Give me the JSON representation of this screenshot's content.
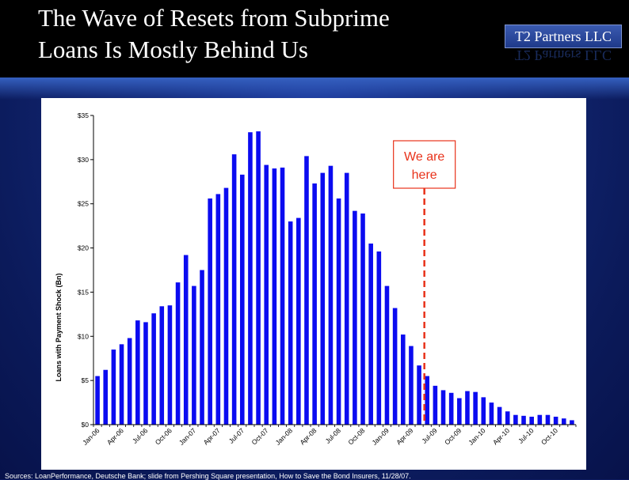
{
  "header": {
    "title_line1": "The Wave of Resets from Subprime",
    "title_line2": "Loans Is Mostly Behind Us",
    "logo_text": "T2 Partners LLC"
  },
  "colors": {
    "bar": "#0b0bf0",
    "callout": "#e8321a",
    "background": "#0d1a5e"
  },
  "chart_data": {
    "type": "bar",
    "title": "",
    "xlabel": "",
    "ylabel": "Loans with Payment Shock (Bn)",
    "ylim": [
      0,
      35
    ],
    "yticks": [
      0,
      5,
      10,
      15,
      20,
      25,
      30,
      35
    ],
    "ytick_labels": [
      "$0",
      "$5",
      "$10",
      "$15",
      "$20",
      "$25",
      "$30",
      "$35"
    ],
    "x_tick_labels": [
      "Jan-06",
      "Apr-06",
      "Jul-06",
      "Oct-06",
      "Jan-07",
      "Apr-07",
      "Jul-07",
      "Oct-07",
      "Jan-08",
      "Apr-08",
      "Jul-08",
      "Oct-08",
      "Jan-09",
      "Apr-09",
      "Jul-09",
      "Oct-09",
      "Jan-10",
      "Apr-10",
      "Jul-10",
      "Oct-10"
    ],
    "categories": [
      "Jan-06",
      "Feb-06",
      "Mar-06",
      "Apr-06",
      "May-06",
      "Jun-06",
      "Jul-06",
      "Aug-06",
      "Sep-06",
      "Oct-06",
      "Nov-06",
      "Dec-06",
      "Jan-07",
      "Feb-07",
      "Mar-07",
      "Apr-07",
      "May-07",
      "Jun-07",
      "Jul-07",
      "Aug-07",
      "Sep-07",
      "Oct-07",
      "Nov-07",
      "Dec-07",
      "Jan-08",
      "Feb-08",
      "Mar-08",
      "Apr-08",
      "May-08",
      "Jun-08",
      "Jul-08",
      "Aug-08",
      "Sep-08",
      "Oct-08",
      "Nov-08",
      "Dec-08",
      "Jan-09",
      "Feb-09",
      "Mar-09",
      "Apr-09",
      "May-09",
      "Jun-09",
      "Jul-09",
      "Aug-09",
      "Sep-09",
      "Oct-09",
      "Nov-09",
      "Dec-09",
      "Jan-10",
      "Feb-10",
      "Mar-10",
      "Apr-10",
      "May-10",
      "Jun-10",
      "Jul-10",
      "Aug-10",
      "Sep-10",
      "Oct-10",
      "Nov-10",
      "Dec-10"
    ],
    "values": [
      5.5,
      6.2,
      8.5,
      9.1,
      9.8,
      11.8,
      11.6,
      12.6,
      13.4,
      13.5,
      16.1,
      19.2,
      15.7,
      17.5,
      25.6,
      26.1,
      26.8,
      30.6,
      28.3,
      33.1,
      33.2,
      29.4,
      29.0,
      29.1,
      23.0,
      23.4,
      30.4,
      27.3,
      28.5,
      29.3,
      25.6,
      28.5,
      24.2,
      23.9,
      20.5,
      19.6,
      15.7,
      13.2,
      10.2,
      8.9,
      6.7,
      5.5,
      4.4,
      3.9,
      3.6,
      3.0,
      3.8,
      3.7,
      3.1,
      2.5,
      2.0,
      1.5,
      1.1,
      1.0,
      0.9,
      1.1,
      1.1,
      0.9,
      0.7,
      0.5
    ],
    "annotation": {
      "text_line1": "We are",
      "text_line2": "here",
      "at_category": "Jun-09"
    }
  },
  "footer": {
    "sources": "Sources: LoanPerformance, Deutsche Bank; slide from Pershing Square presentation, How to Save the Bond Insurers, 11/28/07."
  }
}
